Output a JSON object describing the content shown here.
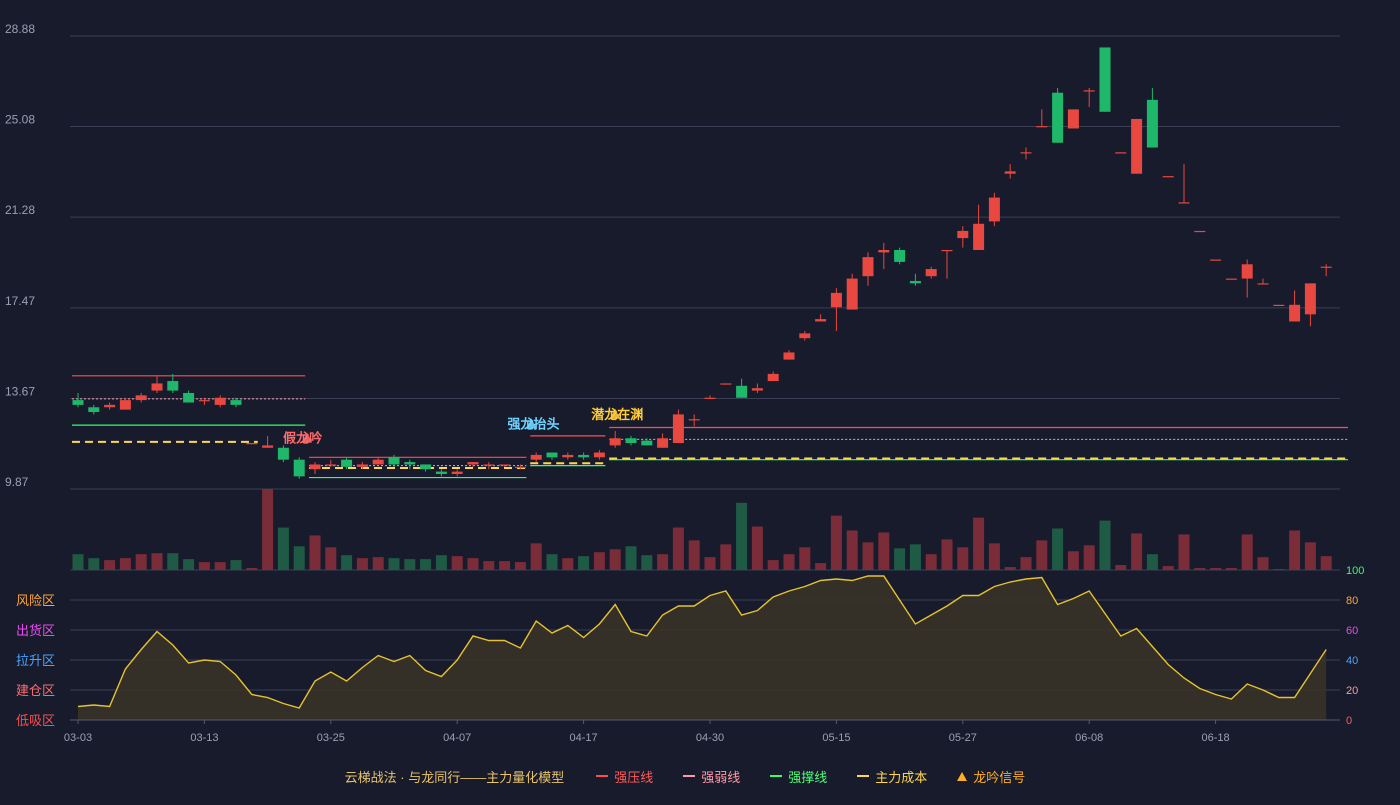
{
  "chart_data": {
    "type": "candlestick",
    "ylim": [
      9.87,
      28.88
    ],
    "ylim_bottom": [
      0,
      100
    ],
    "y_ticks": [
      "28.88",
      "25.08",
      "21.28",
      "17.47",
      "13.67",
      "9.87"
    ],
    "bottom_ticks": [
      "100",
      "80",
      "60",
      "40",
      "20",
      "0"
    ],
    "zone_labels": [
      "风险区",
      "出货区",
      "拉升区",
      "建仓区",
      "低吸区"
    ],
    "x_ticks": [
      {
        "label": "03-03",
        "i": 0
      },
      {
        "label": "03-13",
        "i": 8
      },
      {
        "label": "03-25",
        "i": 16
      },
      {
        "label": "04-07",
        "i": 24
      },
      {
        "label": "04-17",
        "i": 32
      },
      {
        "label": "04-30",
        "i": 40
      },
      {
        "label": "05-15",
        "i": 48
      },
      {
        "label": "05-27",
        "i": 56
      },
      {
        "label": "06-08",
        "i": 64
      },
      {
        "label": "06-18",
        "i": 72
      }
    ],
    "candles": [
      [
        13.6,
        13.4,
        13.9,
        13.3
      ],
      [
        13.3,
        13.1,
        13.4,
        13.0
      ],
      [
        13.3,
        13.4,
        13.5,
        13.2
      ],
      [
        13.2,
        13.6,
        13.7,
        13.2
      ],
      [
        13.6,
        13.8,
        13.9,
        13.5
      ],
      [
        14.0,
        14.3,
        14.6,
        13.9
      ],
      [
        14.4,
        14.0,
        14.7,
        13.9
      ],
      [
        13.9,
        13.5,
        14.0,
        13.5
      ],
      [
        13.6,
        13.6,
        13.7,
        13.4
      ],
      [
        13.4,
        13.7,
        13.8,
        13.3
      ],
      [
        13.6,
        13.4,
        13.7,
        13.3
      ],
      [
        11.8,
        11.8,
        11.8,
        11.8
      ],
      [
        11.6,
        11.7,
        12.1,
        11.6
      ],
      [
        11.6,
        11.1,
        11.7,
        11.0
      ],
      [
        11.1,
        10.4,
        11.2,
        10.3
      ],
      [
        10.7,
        10.9,
        11.0,
        10.5
      ],
      [
        10.9,
        10.9,
        11.1,
        10.8
      ],
      [
        11.1,
        10.8,
        11.2,
        10.7
      ],
      [
        10.8,
        10.9,
        11.0,
        10.7
      ],
      [
        10.9,
        11.1,
        11.2,
        10.9
      ],
      [
        11.2,
        10.9,
        11.3,
        10.8
      ],
      [
        11.0,
        10.9,
        11.1,
        10.7
      ],
      [
        10.9,
        10.7,
        10.9,
        10.6
      ],
      [
        10.6,
        10.5,
        10.7,
        10.4
      ],
      [
        10.5,
        10.6,
        10.7,
        10.4
      ],
      [
        10.9,
        11.0,
        11.0,
        10.8
      ],
      [
        10.9,
        10.9,
        11.0,
        10.7
      ],
      [
        10.9,
        10.9,
        10.9,
        10.8
      ],
      [
        10.8,
        10.8,
        10.9,
        10.7
      ],
      [
        11.1,
        11.3,
        11.4,
        11.0
      ],
      [
        11.4,
        11.2,
        11.4,
        11.1
      ],
      [
        11.2,
        11.3,
        11.4,
        11.1
      ],
      [
        11.3,
        11.2,
        11.4,
        11.1
      ],
      [
        11.2,
        11.4,
        11.5,
        11.1
      ],
      [
        11.7,
        12.0,
        12.3,
        11.6
      ],
      [
        12.0,
        11.8,
        12.1,
        11.7
      ],
      [
        11.9,
        11.7,
        12.0,
        11.7
      ],
      [
        11.6,
        12.0,
        12.2,
        11.6
      ],
      [
        11.8,
        13.0,
        13.2,
        11.8
      ],
      [
        12.8,
        12.8,
        13.0,
        12.5
      ],
      [
        13.7,
        13.7,
        13.8,
        13.7
      ],
      [
        14.3,
        14.3,
        14.3,
        14.3
      ],
      [
        14.2,
        13.7,
        14.5,
        13.7
      ],
      [
        14.0,
        14.1,
        14.3,
        13.9
      ],
      [
        14.4,
        14.7,
        14.8,
        14.4
      ],
      [
        15.3,
        15.6,
        15.7,
        15.3
      ],
      [
        16.2,
        16.4,
        16.5,
        16.1
      ],
      [
        16.9,
        17.0,
        17.2,
        16.9
      ],
      [
        17.5,
        18.1,
        18.3,
        16.5
      ],
      [
        17.4,
        18.7,
        18.9,
        17.4
      ],
      [
        18.8,
        19.6,
        19.8,
        18.4
      ],
      [
        19.8,
        19.9,
        20.2,
        19.1
      ],
      [
        19.9,
        19.4,
        20.0,
        19.3
      ],
      [
        18.6,
        18.5,
        18.9,
        18.4
      ],
      [
        18.8,
        19.1,
        19.2,
        18.7
      ],
      [
        19.9,
        19.9,
        19.9,
        18.7
      ],
      [
        20.4,
        20.7,
        20.9,
        20.0
      ],
      [
        19.9,
        21.0,
        21.8,
        19.9
      ],
      [
        21.1,
        22.1,
        22.3,
        20.9
      ],
      [
        23.1,
        23.2,
        23.5,
        22.9
      ],
      [
        24.0,
        24.0,
        24.2,
        23.7
      ],
      [
        25.1,
        25.1,
        25.8,
        25.1
      ],
      [
        26.5,
        24.4,
        26.7,
        24.4
      ],
      [
        25.0,
        25.8,
        25.8,
        25.0
      ],
      [
        26.6,
        26.6,
        26.7,
        25.9
      ],
      [
        28.4,
        25.7,
        28.4,
        25.7
      ],
      [
        24.0,
        24.0,
        24.0,
        24.0
      ],
      [
        23.1,
        25.4,
        25.4,
        23.1
      ],
      [
        26.2,
        24.2,
        26.7,
        24.2
      ],
      [
        23.0,
        23.0,
        23.0,
        23.0
      ],
      [
        21.9,
        21.9,
        23.5,
        21.9
      ],
      [
        20.7,
        20.7,
        20.7,
        20.7
      ],
      [
        19.5,
        19.5,
        19.5,
        19.5
      ],
      [
        18.7,
        18.7,
        18.7,
        18.7
      ],
      [
        18.7,
        19.3,
        19.5,
        17.9
      ],
      [
        18.5,
        18.5,
        18.7,
        18.5
      ],
      [
        17.6,
        17.6,
        17.6,
        17.6
      ],
      [
        16.9,
        17.6,
        18.2,
        16.9
      ],
      [
        17.2,
        18.5,
        18.5,
        16.7
      ],
      [
        19.2,
        19.2,
        19.3,
        18.8
      ]
    ],
    "volume": [
      16,
      12,
      10,
      12,
      16,
      17,
      17,
      11,
      8,
      8,
      10,
      2,
      82,
      43,
      24,
      35,
      23,
      15,
      12,
      13,
      12,
      11,
      11,
      15,
      14,
      12,
      9,
      9,
      8,
      27,
      16,
      12,
      14,
      18,
      21,
      24,
      15,
      16,
      43,
      30,
      13,
      26,
      68,
      44,
      10,
      16,
      23,
      7,
      55,
      40,
      28,
      38,
      22,
      26,
      16,
      31,
      23,
      53,
      27,
      3,
      13,
      30,
      42,
      19,
      25,
      50,
      5,
      37,
      16,
      4,
      36,
      2,
      2,
      2,
      36,
      13,
      1,
      40,
      28,
      14
    ],
    "oscillator": [
      9,
      10,
      9,
      34,
      47,
      59,
      50,
      38,
      40,
      39,
      30,
      17,
      15,
      11,
      8,
      26,
      32,
      26,
      35,
      43,
      39,
      43,
      33,
      29,
      40,
      56,
      53,
      53,
      48,
      66,
      58,
      63,
      55,
      64,
      77,
      59,
      56,
      70,
      76,
      76,
      83,
      86,
      70,
      73,
      82,
      86,
      89,
      93,
      94,
      93,
      96,
      96,
      80,
      64,
      70,
      76,
      83,
      83,
      89,
      92,
      94,
      95,
      77,
      81,
      86,
      71,
      56,
      61,
      49,
      37,
      28,
      21,
      17,
      14,
      24,
      20,
      15,
      15,
      31,
      47
    ],
    "levels": [
      {
        "type": "strong-pressure",
        "i0": 0,
        "i1": 14,
        "y": 14.62
      },
      {
        "type": "strong-weak",
        "i0": 0,
        "i1": 14,
        "y": 13.65
      },
      {
        "type": "strong-support",
        "i0": 0,
        "i1": 14,
        "y": 12.55
      },
      {
        "type": "main-cost",
        "i0": 0,
        "i1": 11,
        "y": 11.85
      },
      {
        "type": "strong-pressure",
        "i0": 15,
        "i1": 28,
        "y": 11.2
      },
      {
        "type": "strong-weak",
        "i0": 15,
        "i1": 28,
        "y": 10.85
      },
      {
        "type": "main-cost",
        "i0": 15,
        "i1": 28,
        "y": 10.75
      },
      {
        "type": "strong-support",
        "i0": 15,
        "i1": 28,
        "y": 10.35
      },
      {
        "type": "strong-pressure",
        "i0": 29,
        "i1": 33,
        "y": 12.1
      },
      {
        "type": "main-cost",
        "i0": 29,
        "i1": 33,
        "y": 10.95
      },
      {
        "type": "strong-support",
        "i0": 29,
        "i1": 33,
        "y": 10.85
      },
      {
        "type": "strong-pressure",
        "i0": 34,
        "i1": 80,
        "y": 12.45
      },
      {
        "type": "strong-weak",
        "i0": 34,
        "i1": 80,
        "y": 11.95
      },
      {
        "type": "strong-support",
        "i0": 34,
        "i1": 80,
        "y": 11.1
      },
      {
        "type": "main-cost",
        "i0": 34,
        "i1": 80,
        "y": 11.15
      }
    ],
    "annotations": [
      {
        "label": "假龙吟",
        "i": 14.5,
        "y": 11.9,
        "color": "#ff6b6b"
      },
      {
        "label": "强龙抬头",
        "i": 28.7,
        "y": 12.5,
        "color": "#6fd3ff"
      },
      {
        "label": "潜龙在渊",
        "i": 34,
        "y": 12.9,
        "color": "#ffcc33"
      }
    ],
    "legend": {
      "title": "云梯战法 · 与龙同行——主力量化模型",
      "items": [
        "强压线",
        "强弱线",
        "强撑线",
        "主力成本",
        "龙吟信号"
      ]
    }
  }
}
